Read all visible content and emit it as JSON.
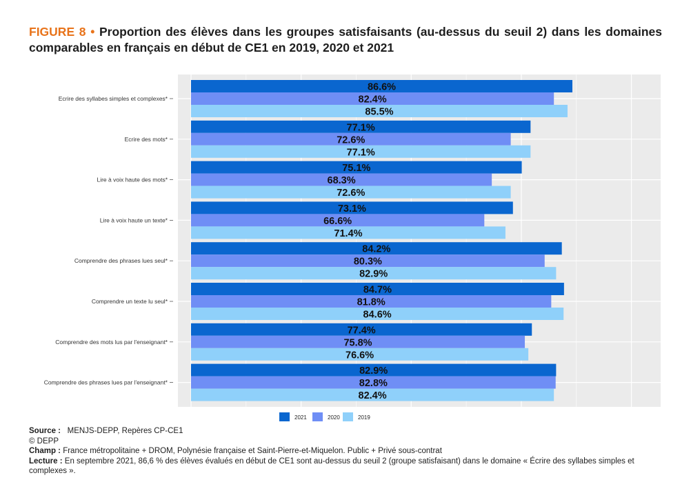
{
  "figure": {
    "label": "FIGURE 8",
    "bullet": "•",
    "title": "Proportion des élèves dans les groupes satisfaisants (au-dessus du seuil 2) dans les domaines comparables en français en début de CE1 en 2019, 2020 et 2021"
  },
  "chart_data": {
    "type": "bar",
    "orientation": "horizontal",
    "categories": [
      "Ecrire des syllabes simples et complexes*",
      "Ecrire des mots*",
      "Lire à voix haute des mots*",
      "Lire à voix haute un texte*",
      "Comprendre des phrases lues seul*",
      "Comprendre un texte lu seul*",
      "Comprendre des mots lus par l'enseignant*",
      "Comprendre des phrases lues par l'enseignant*"
    ],
    "series": [
      {
        "name": "2021",
        "color": "#0a66cf",
        "values": [
          86.6,
          77.1,
          75.1,
          73.1,
          84.2,
          84.7,
          77.4,
          82.9
        ],
        "labels": [
          "86.6%",
          "77.1%",
          "75.1%",
          "73.1%",
          "84.2%",
          "84.7%",
          "77.4%",
          "82.9%"
        ]
      },
      {
        "name": "2020",
        "color": "#6f8ef5",
        "values": [
          82.4,
          72.6,
          68.3,
          66.6,
          80.3,
          81.8,
          75.8,
          82.8
        ],
        "labels": [
          "82.4%",
          "72.6%",
          "68.3%",
          "66.6%",
          "80.3%",
          "81.8%",
          "75.8%",
          "82.8%"
        ]
      },
      {
        "name": "2019",
        "color": "#8fd0fa",
        "values": [
          85.5,
          77.1,
          72.6,
          71.4,
          82.9,
          84.6,
          76.6,
          82.4
        ],
        "labels": [
          "85.5%",
          "77.1%",
          "72.6%",
          "71.4%",
          "82.9%",
          "84.6%",
          "76.6%",
          "82.4%"
        ]
      }
    ],
    "xlim": [
      0,
      106.5
    ],
    "grid": true,
    "legend_position": "bottom"
  },
  "notes": {
    "source_label": "Source :",
    "source_text": "MENJS-DEPP, Repères CP-CE1",
    "copyright": "© DEPP",
    "champ_label": "Champ :",
    "champ_text": "France métropolitaine + DROM, Polynésie française et Saint-Pierre-et-Miquelon. Public + Privé sous-contrat",
    "lecture_label": "Lecture :",
    "lecture_text": "En septembre 2021, 86,6 % des élèves évalués en début de CE1 sont au-dessus du seuil 2 (groupe satisfaisant) dans le domaine «  Écrire des syllabes simples et complexes  »."
  }
}
